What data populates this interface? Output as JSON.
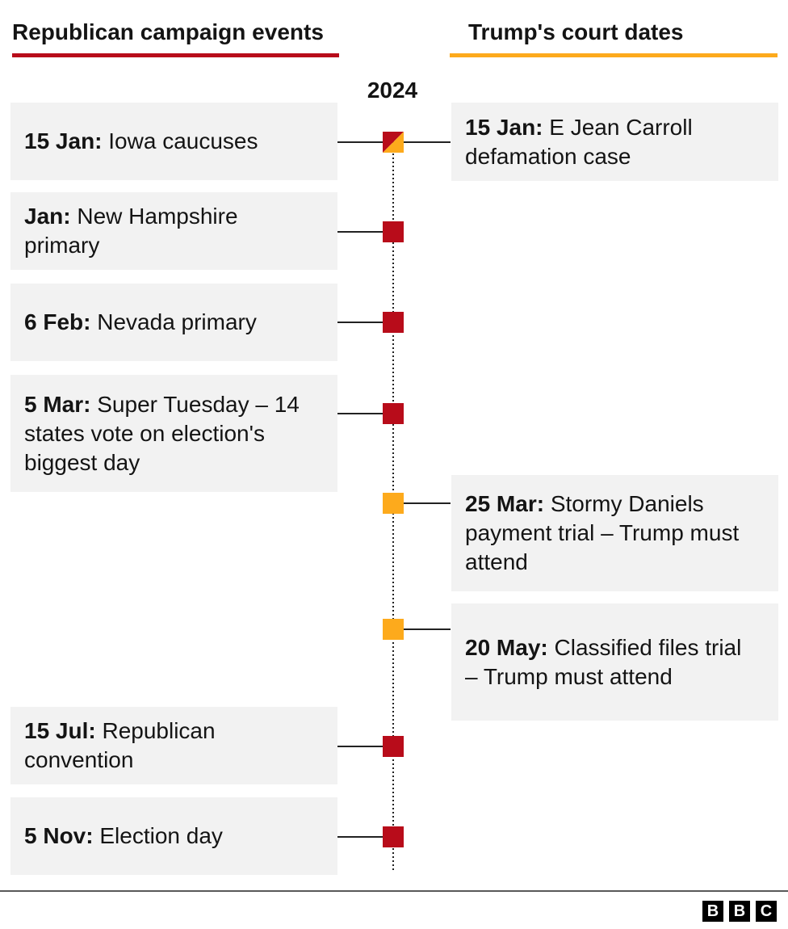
{
  "header": {
    "left_title": "Republican campaign events",
    "right_title": "Trump's court dates",
    "year": "2024"
  },
  "left": [
    {
      "date": "15 Jan:",
      "text": "Iowa caucuses"
    },
    {
      "date": "Jan:",
      "text": "New Hampshire primary"
    },
    {
      "date": "6 Feb:",
      "text": "Nevada primary"
    },
    {
      "date": "5 Mar:",
      "text": "Super Tuesday – 14 states vote on election's biggest day"
    },
    {
      "date": "15 Jul:",
      "text": "Republican convention"
    },
    {
      "date": "5 Nov:",
      "text": "Election day"
    }
  ],
  "right": [
    {
      "date": "15 Jan:",
      "text": "E Jean Carroll defamation case"
    },
    {
      "date": "25 Mar:",
      "text": "Stormy Daniels payment trial – Trump must attend"
    },
    {
      "date": "20 May:",
      "text": "Classified files trial – Trump must attend"
    }
  ],
  "footer": {
    "logo": [
      "B",
      "B",
      "C"
    ]
  }
}
